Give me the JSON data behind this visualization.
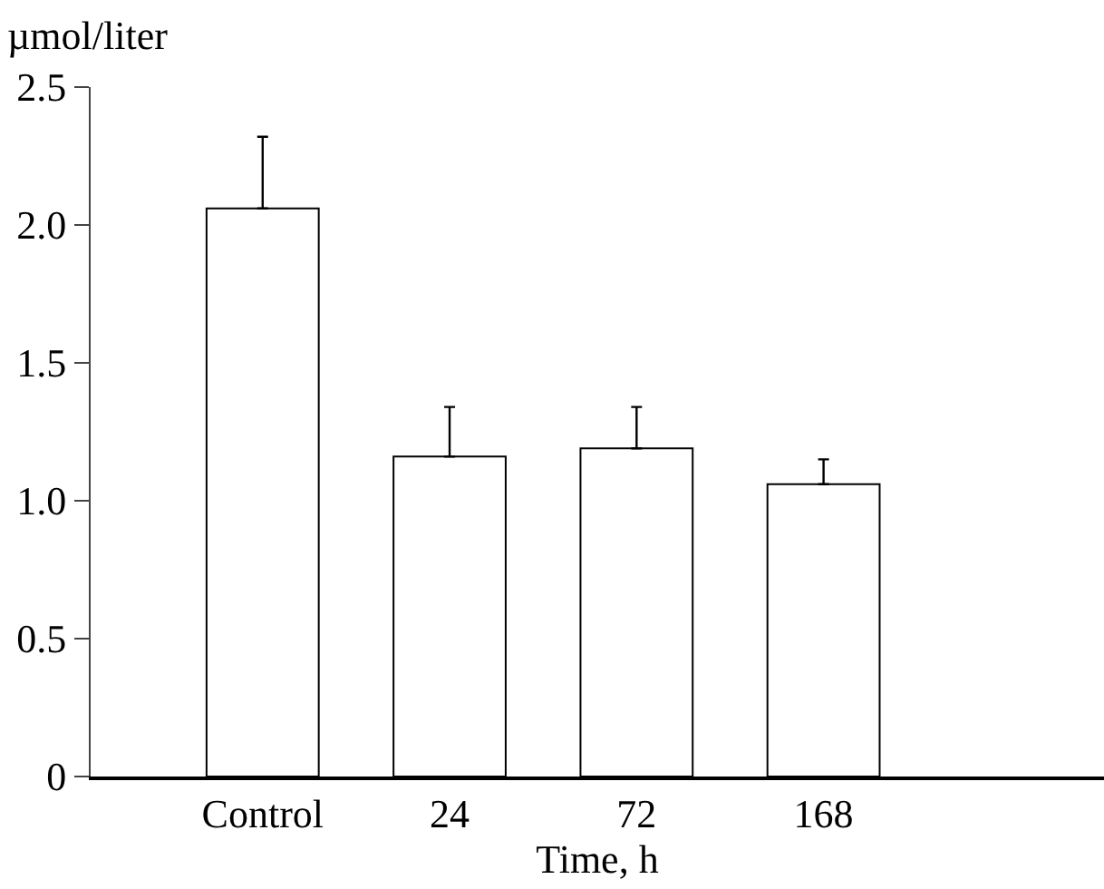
{
  "chart_data": {
    "type": "bar",
    "ylabel": "µmol/liter",
    "xlabel": "Time, h",
    "categories": [
      "Control",
      "24",
      "72",
      "168"
    ],
    "values": [
      2.06,
      1.16,
      1.19,
      1.06
    ],
    "errors": [
      [
        2.06,
        2.32
      ],
      [
        1.16,
        1.34
      ],
      [
        1.19,
        1.34
      ],
      [
        1.06,
        1.15
      ]
    ],
    "color": "#ffffff",
    "ylim": [
      0,
      2.5
    ],
    "yticks": [
      {
        "value": 0,
        "label": "0"
      },
      {
        "value": 0.5,
        "label": "0.5"
      },
      {
        "value": 1,
        "label": "1.0"
      },
      {
        "value": 1.5,
        "label": "1.5"
      },
      {
        "value": 2,
        "label": "2.0"
      },
      {
        "value": 2.5,
        "label": "2.5"
      }
    ],
    "grid": false
  }
}
